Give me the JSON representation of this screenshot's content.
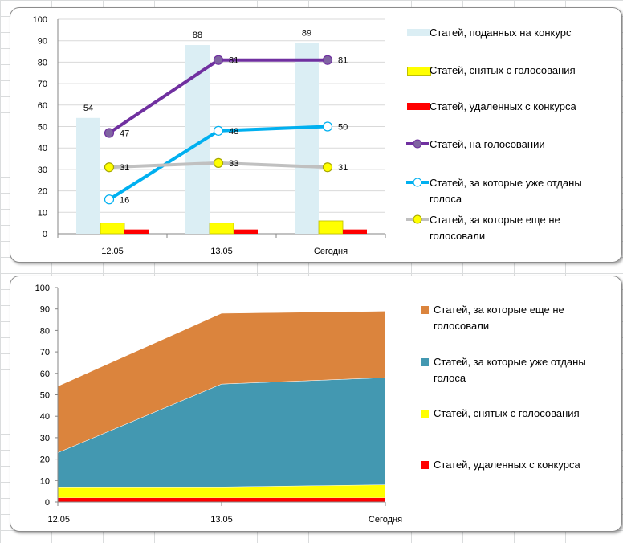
{
  "chart_data": [
    {
      "type": "bar+line",
      "categories": [
        "12.05",
        "13.05",
        "Сегодня"
      ],
      "ylim": [
        0,
        100
      ],
      "yticks": [
        0,
        10,
        20,
        30,
        40,
        50,
        60,
        70,
        80,
        90,
        100
      ],
      "grid": true,
      "legend_position": "right",
      "bar_series": [
        {
          "name": "Статей, поданных на конкурс",
          "values": [
            54,
            88,
            89
          ],
          "color": "#dbeef4",
          "labels": true
        },
        {
          "name": "Статей, снятых с голосования",
          "values": [
            5,
            5,
            6
          ],
          "color": "#ffff00",
          "labels": false
        },
        {
          "name": "Статей, удаленных с конкурса",
          "values": [
            2,
            2,
            2
          ],
          "color": "#ff0000",
          "labels": false
        }
      ],
      "line_series": [
        {
          "name": "Статей, на голосовании",
          "values": [
            47,
            81,
            81
          ],
          "color": "#7030a0",
          "marker_fill": "#8064a2",
          "marker": "filled"
        },
        {
          "name": "Статей, за которые уже отданы голоса",
          "values": [
            16,
            48,
            50
          ],
          "color": "#00b0f0",
          "marker_fill": "#ffffff",
          "marker": "hollow"
        },
        {
          "name": "Статей, за которые еще не голосовали",
          "values": [
            31,
            33,
            31
          ],
          "color": "#c0c0c0",
          "marker_fill": "#ffff00",
          "marker": "filled"
        }
      ],
      "legend_order": [
        "Статей, поданных на конкурс",
        "Статей, снятых с голосования",
        "Статей, удаленных с конкурса",
        "Статей, на голосовании",
        "Статей, за которые уже отданы голоса",
        "Статей, за которые еще не голосовали"
      ]
    },
    {
      "type": "area",
      "stacked": true,
      "categories": [
        "12.05",
        "13.05",
        "Сегодня"
      ],
      "ylim": [
        0,
        100
      ],
      "yticks": [
        0,
        10,
        20,
        30,
        40,
        50,
        60,
        70,
        80,
        90,
        100
      ],
      "grid": false,
      "legend_position": "right",
      "series": [
        {
          "name": "Статей, удаленных с конкурса",
          "values": [
            2,
            2,
            2
          ],
          "color": "#ff0000"
        },
        {
          "name": "Статей, снятых с голосования",
          "values": [
            5,
            5,
            6
          ],
          "color": "#ffff00"
        },
        {
          "name": "Статей, за которые уже отданы голоса",
          "values": [
            16,
            48,
            50
          ],
          "color": "#4398b1"
        },
        {
          "name": "Статей, за которые еще не голосовали",
          "values": [
            31,
            33,
            31
          ],
          "color": "#db843d"
        }
      ],
      "legend_order": [
        "Статей, за которые еще не голосовали",
        "Статей, за которые уже отданы голоса",
        "Статей, снятых с голосования",
        "Статей, удаленных с конкурса"
      ]
    }
  ]
}
